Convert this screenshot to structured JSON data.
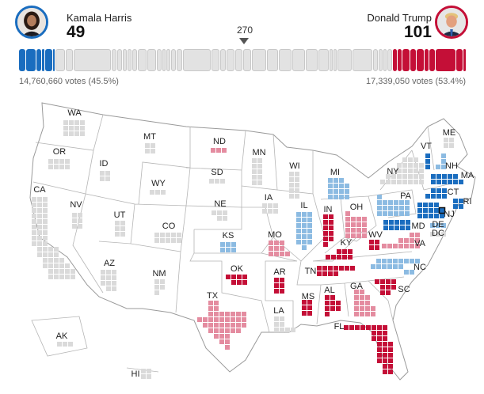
{
  "colors": {
    "harris": "#1a6dbf",
    "harris_lead": "#8cbbe2",
    "trump": "#c40f37",
    "trump_lead": "#e48ca0",
    "none": "#dadada"
  },
  "header": {
    "harris": {
      "name": "Kamala Harris",
      "electoral_votes": "49",
      "votes": "14,760,660 votes (45.5%)"
    },
    "trump": {
      "name": "Donald Trump",
      "electoral_votes": "101",
      "votes": "17,339,050 votes (53.4%)"
    },
    "threshold": "270"
  },
  "states": [
    {
      "abbr": "WA",
      "ev": 12,
      "status": "none"
    },
    {
      "abbr": "OR",
      "ev": 8,
      "status": "none"
    },
    {
      "abbr": "CA",
      "ev": 54,
      "status": "none"
    },
    {
      "abbr": "NV",
      "ev": 6,
      "status": "none"
    },
    {
      "abbr": "ID",
      "ev": 4,
      "status": "none"
    },
    {
      "abbr": "MT",
      "ev": 4,
      "status": "none"
    },
    {
      "abbr": "WY",
      "ev": 3,
      "status": "none"
    },
    {
      "abbr": "UT",
      "ev": 6,
      "status": "none"
    },
    {
      "abbr": "CO",
      "ev": 10,
      "status": "none"
    },
    {
      "abbr": "AZ",
      "ev": 11,
      "status": "none"
    },
    {
      "abbr": "NM",
      "ev": 5,
      "status": "none"
    },
    {
      "abbr": "ND",
      "ev": 3,
      "status": "trump_lead"
    },
    {
      "abbr": "SD",
      "ev": 3,
      "status": "none"
    },
    {
      "abbr": "NE",
      "ev": 5,
      "status": "none"
    },
    {
      "abbr": "KS",
      "ev": 6,
      "status": "harris_lead"
    },
    {
      "abbr": "OK",
      "ev": 7,
      "status": "trump"
    },
    {
      "abbr": "TX",
      "ev": 40,
      "status": "trump_lead"
    },
    {
      "abbr": "MN",
      "ev": 10,
      "status": "none"
    },
    {
      "abbr": "IA",
      "ev": 6,
      "status": "none"
    },
    {
      "abbr": "MO",
      "ev": 10,
      "status": "trump_lead"
    },
    {
      "abbr": "AR",
      "ev": 6,
      "status": "trump"
    },
    {
      "abbr": "LA",
      "ev": 8,
      "status": "none"
    },
    {
      "abbr": "WI",
      "ev": 10,
      "status": "none"
    },
    {
      "abbr": "IL",
      "ev": 19,
      "status": "harris_lead"
    },
    {
      "abbr": "MI",
      "ev": 15,
      "status": "harris_lead"
    },
    {
      "abbr": "IN",
      "ev": 11,
      "status": "trump"
    },
    {
      "abbr": "OH",
      "ev": 17,
      "status": "trump_lead"
    },
    {
      "abbr": "KY",
      "ev": 8,
      "status": "trump"
    },
    {
      "abbr": "TN",
      "ev": 11,
      "status": "trump"
    },
    {
      "abbr": "MS",
      "ev": 6,
      "status": "trump"
    },
    {
      "abbr": "AL",
      "ev": 9,
      "status": "trump"
    },
    {
      "abbr": "GA",
      "ev": 16,
      "status": "trump_lead"
    },
    {
      "abbr": "FL",
      "ev": 30,
      "status": "trump"
    },
    {
      "abbr": "SC",
      "ev": 9,
      "status": "trump"
    },
    {
      "abbr": "NC",
      "ev": 16,
      "status": "harris_lead"
    },
    {
      "abbr": "VA",
      "ev": 13,
      "status": "trump_lead"
    },
    {
      "abbr": "WV",
      "ev": 4,
      "status": "trump"
    },
    {
      "abbr": "MD",
      "ev": 10,
      "status": "harris"
    },
    {
      "abbr": "DE",
      "ev": 3,
      "status": "harris_lead"
    },
    {
      "abbr": "DC",
      "ev": 3,
      "status": "none"
    },
    {
      "abbr": "PA",
      "ev": 19,
      "status": "harris_lead"
    },
    {
      "abbr": "NY",
      "ev": 28,
      "status": "none"
    },
    {
      "abbr": "NJ",
      "ev": 14,
      "status": "harris"
    },
    {
      "abbr": "CT",
      "ev": 7,
      "status": "harris"
    },
    {
      "abbr": "RI",
      "ev": 4,
      "status": "harris"
    },
    {
      "abbr": "MA",
      "ev": 11,
      "status": "harris"
    },
    {
      "abbr": "VT",
      "ev": 3,
      "status": "harris"
    },
    {
      "abbr": "NH",
      "ev": 4,
      "status": "harris_lead"
    },
    {
      "abbr": "ME",
      "ev": 4,
      "status": "none"
    },
    {
      "abbr": "AK",
      "ev": 3,
      "status": "none"
    },
    {
      "abbr": "HI",
      "ev": 4,
      "status": "none"
    }
  ]
}
